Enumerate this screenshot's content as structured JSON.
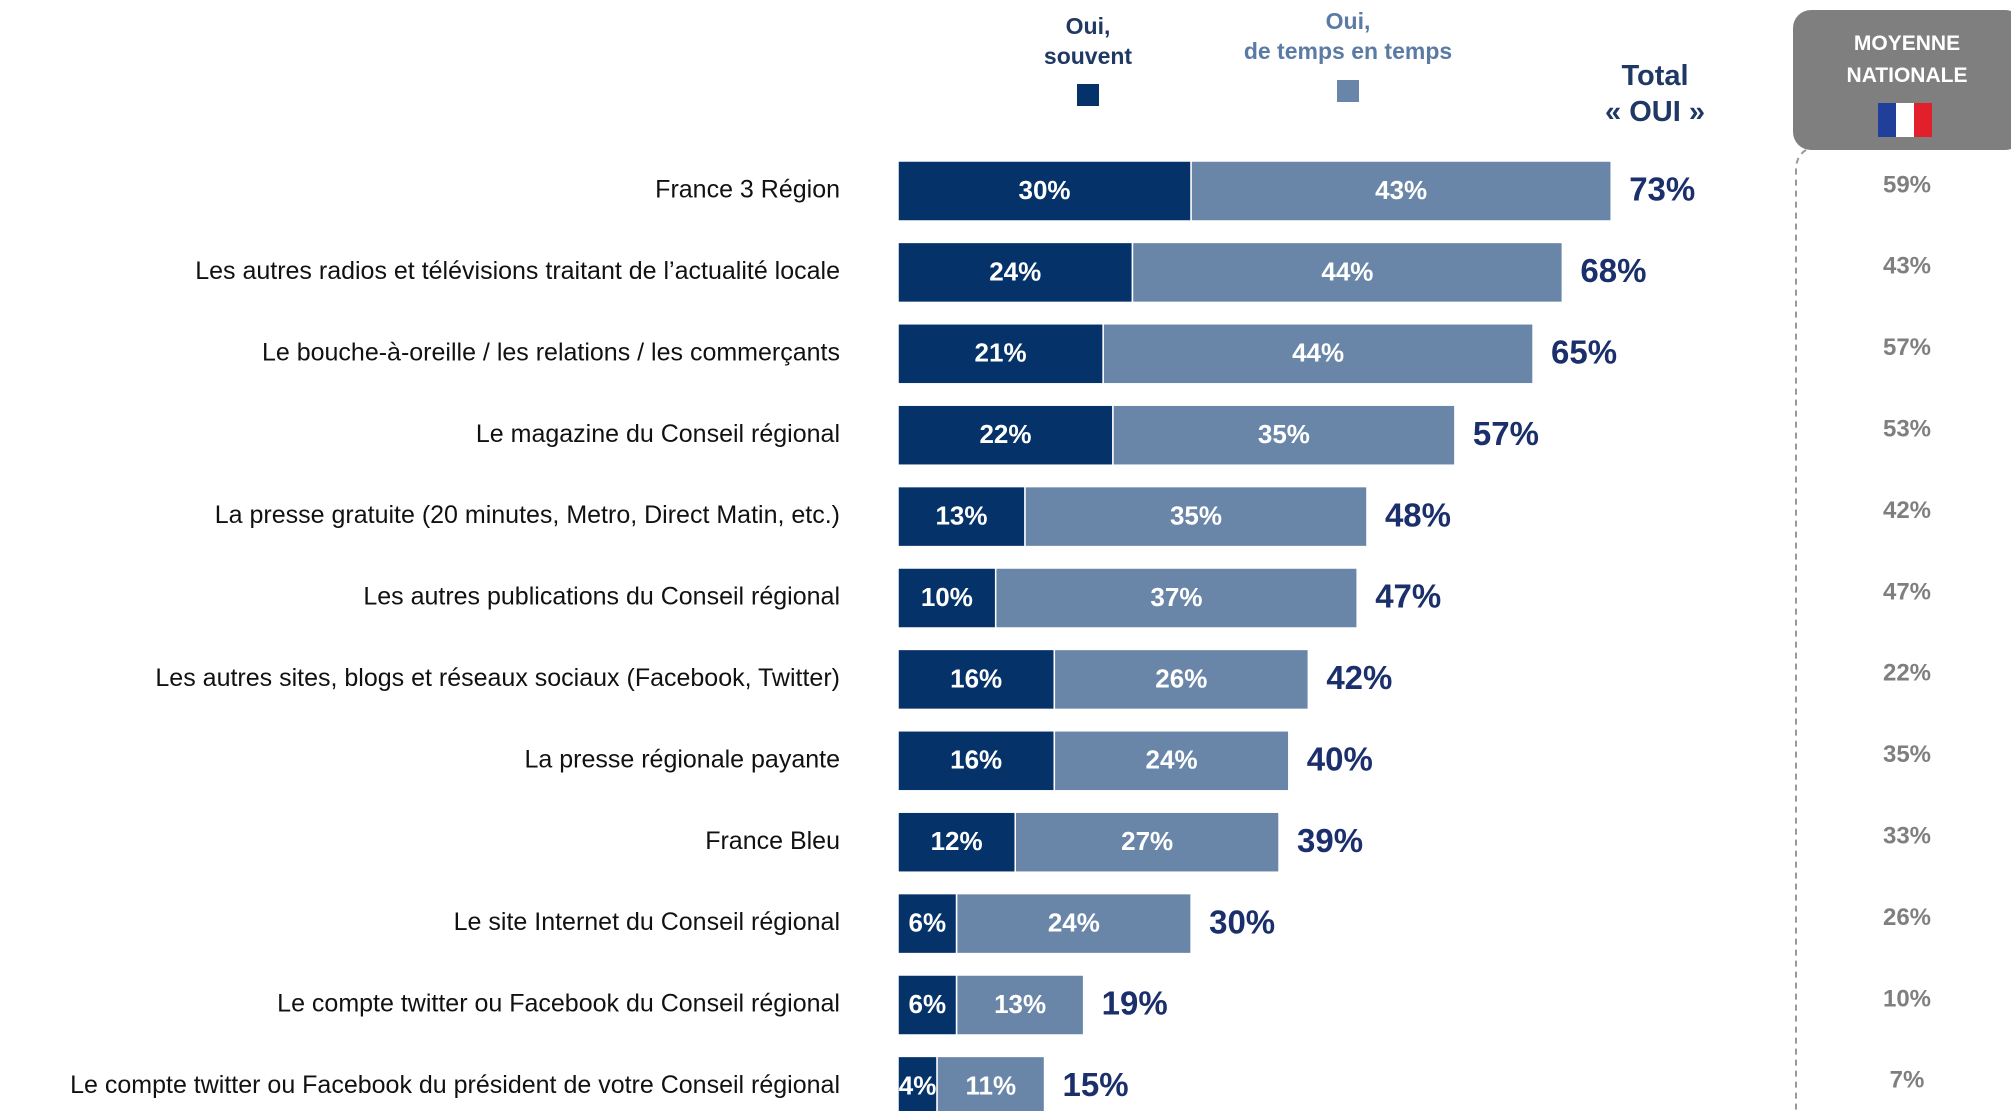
{
  "chart_data": {
    "type": "stacked_bar_horizontal",
    "categories": [
      "France 3 Région",
      "Les autres radios et télévisions traitant de l’actualité locale",
      "Le bouche-à-oreille / les relations / les commerçants",
      "Le magazine du Conseil régional",
      "La presse gratuite (20 minutes, Metro, Direct Matin, etc.)",
      "Les autres publications du Conseil régional",
      "Les autres sites, blogs et réseaux sociaux (Facebook, Twitter)",
      "La presse régionale payante",
      "France Bleu",
      "Le site Internet du Conseil régional",
      "Le compte twitter ou Facebook du Conseil régional",
      "Le compte twitter ou Facebook du président de votre Conseil régional"
    ],
    "series": [
      {
        "name": "Oui,\nsouvent",
        "color": "#06326a",
        "values": [
          30,
          24,
          21,
          22,
          13,
          10,
          16,
          16,
          12,
          6,
          6,
          4
        ],
        "value_labels": [
          "30%",
          "24%",
          "21%",
          "22%",
          "13%",
          "10%",
          "16%",
          "16%",
          "12%",
          "6%",
          "6%",
          "4%"
        ]
      },
      {
        "name": "Oui,\nde temps en temps",
        "color": "#6986a9",
        "values": [
          43,
          44,
          44,
          35,
          35,
          37,
          26,
          24,
          27,
          24,
          13,
          11
        ],
        "value_labels": [
          "43%",
          "44%",
          "44%",
          "35%",
          "35%",
          "37%",
          "26%",
          "24%",
          "27%",
          "24%",
          "13%",
          "11%"
        ]
      }
    ],
    "total_title": "Total\n« OUI »",
    "totals": [
      73,
      68,
      65,
      57,
      48,
      47,
      42,
      40,
      39,
      30,
      19,
      15
    ],
    "total_labels": [
      "73%",
      "68%",
      "65%",
      "57%",
      "48%",
      "47%",
      "42%",
      "40%",
      "39%",
      "30%",
      "19%",
      "15%"
    ],
    "national_title": "MOYENNE\nNATIONALE",
    "national_values": [
      "59%",
      "43%",
      "57%",
      "53%",
      "42%",
      "47%",
      "22%",
      "35%",
      "33%",
      "26%",
      "10%",
      "7%"
    ]
  }
}
